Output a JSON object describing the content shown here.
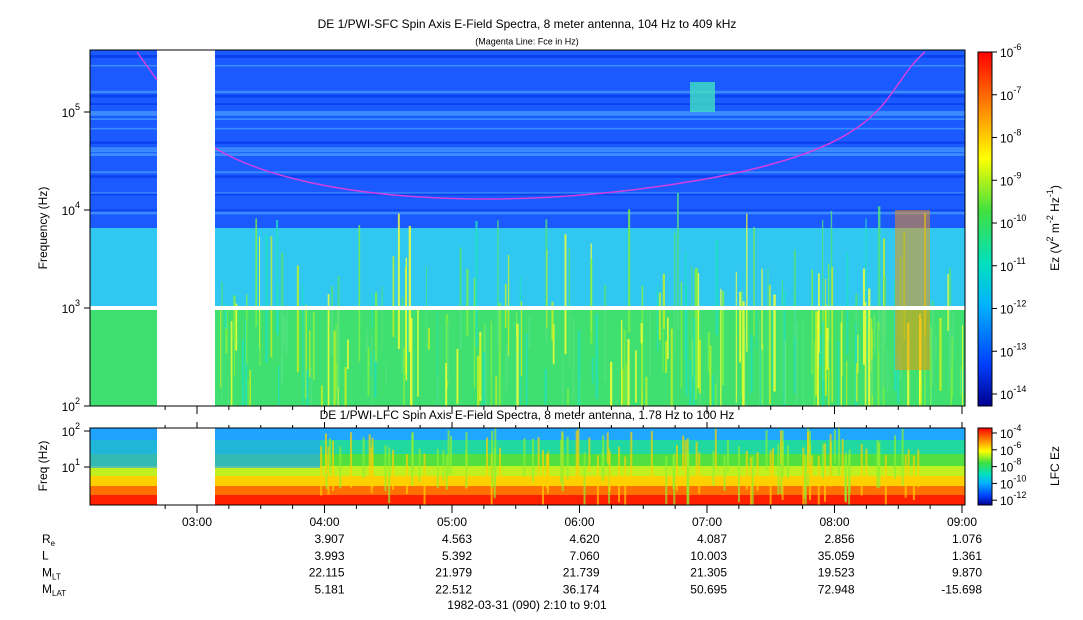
{
  "title": "DE 1/PWI-SFC  Spin Axis E-Field Spectra, 8 meter antenna, 104 Hz to 409 kHz",
  "subtitle": "(Magenta Line: Fce in Hz)",
  "top_panel": {
    "y_label": "Frequency (Hz)",
    "y_ticks": [
      {
        "base": "10",
        "exponent": "2"
      },
      {
        "base": "10",
        "exponent": "3"
      },
      {
        "base": "10",
        "exponent": "4"
      },
      {
        "base": "10",
        "exponent": "5"
      }
    ],
    "colorbar_label": [
      {
        "text": "Ez (V",
        "sup": false
      },
      {
        "text": "2",
        "sup": true
      },
      {
        "text": " m",
        "sup": false
      },
      {
        "text": "-2",
        "sup": true
      },
      {
        "text": " Hz",
        "sup": false
      },
      {
        "text": "-1",
        "sup": true
      },
      {
        "text": ")",
        "sup": false
      }
    ],
    "colorbar_ticks": [
      {
        "base": "10",
        "exponent": "-6"
      },
      {
        "base": "10",
        "exponent": "-7"
      },
      {
        "base": "10",
        "exponent": "-8"
      },
      {
        "base": "10",
        "exponent": "-9"
      },
      {
        "base": "10",
        "exponent": "-10"
      },
      {
        "base": "10",
        "exponent": "-11"
      },
      {
        "base": "10",
        "exponent": "-12"
      },
      {
        "base": "10",
        "exponent": "-13"
      },
      {
        "base": "10",
        "exponent": "-14"
      }
    ]
  },
  "bottom_panel": {
    "title": "DE 1/PWI-LFC  Spin Axis E-Field Spectra, 8 meter antenna, 1.78 Hz to 100 Hz",
    "y_label": "Freq (Hz)",
    "y_ticks": [
      {
        "base": "10",
        "exponent": "2"
      },
      {
        "base": "10",
        "exponent": "1"
      }
    ],
    "colorbar_label": "LFC Ez",
    "colorbar_ticks": [
      {
        "base": "10",
        "exponent": "-4"
      },
      {
        "base": "10",
        "exponent": "-6"
      },
      {
        "base": "10",
        "exponent": "-8"
      },
      {
        "base": "10",
        "exponent": "-10"
      },
      {
        "base": "10",
        "exponent": "-12"
      }
    ]
  },
  "x_ticks": [
    "03:00",
    "04:00",
    "05:00",
    "06:00",
    "07:00",
    "08:00",
    "09:00"
  ],
  "ephemeris": [
    {
      "symbol": "R",
      "subscript": "e",
      "values": [
        "3.907",
        "4.563",
        "4.620",
        "4.087",
        "2.856",
        "1.076"
      ]
    },
    {
      "symbol": "L",
      "subscript": "",
      "values": [
        "3.993",
        "5.392",
        "7.060",
        "10.003",
        "35.059",
        "1.361"
      ]
    },
    {
      "symbol": "M",
      "subscript": "LT",
      "values": [
        "22.115",
        "21.979",
        "21.739",
        "21.305",
        "19.523",
        "9.870"
      ]
    },
    {
      "symbol": "M",
      "subscript": "LAT",
      "values": [
        "5.181",
        "22.512",
        "36.174",
        "50.695",
        "72.948",
        "-15.698"
      ]
    }
  ],
  "footer": "1982-03-31 (090) 2:10 to 9:01"
}
